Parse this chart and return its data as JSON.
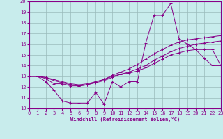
{
  "xlabel": "Windchill (Refroidissement éolien,°C)",
  "xlim": [
    0,
    23
  ],
  "ylim": [
    10,
    20
  ],
  "yticks": [
    10,
    11,
    12,
    13,
    14,
    15,
    16,
    17,
    18,
    19,
    20
  ],
  "xticks": [
    0,
    1,
    2,
    3,
    4,
    5,
    6,
    7,
    8,
    9,
    10,
    11,
    12,
    13,
    14,
    15,
    16,
    17,
    18,
    19,
    20,
    21,
    22,
    23
  ],
  "bg_color": "#c8ecec",
  "line_color": "#880088",
  "grid_color": "#99bbbb",
  "line1_x": [
    0,
    1,
    2,
    3,
    4,
    5,
    6,
    7,
    8,
    9,
    10,
    11,
    12,
    13,
    14,
    15,
    16,
    17,
    18,
    19,
    20,
    21,
    22,
    23
  ],
  "line1_y": [
    13.0,
    13.0,
    12.5,
    11.7,
    10.7,
    10.5,
    10.5,
    10.5,
    11.5,
    10.4,
    12.5,
    12.0,
    12.5,
    12.5,
    16.1,
    18.7,
    18.7,
    19.8,
    16.5,
    16.0,
    15.5,
    14.7,
    14.0,
    14.0
  ],
  "line2_x": [
    0,
    1,
    2,
    3,
    4,
    5,
    6,
    7,
    8,
    9,
    10,
    11,
    12,
    13,
    14,
    15,
    16,
    17,
    18,
    19,
    20,
    21,
    22,
    23
  ],
  "line2_y": [
    13.0,
    13.0,
    12.8,
    12.3,
    12.3,
    12.1,
    12.1,
    12.2,
    12.5,
    12.7,
    13.0,
    13.2,
    13.3,
    13.5,
    13.8,
    14.2,
    14.6,
    15.0,
    15.2,
    15.4,
    15.5,
    15.5,
    15.5,
    14.0
  ],
  "line3_x": [
    0,
    1,
    2,
    3,
    4,
    5,
    6,
    7,
    8,
    9,
    10,
    11,
    12,
    13,
    14,
    15,
    16,
    17,
    18,
    19,
    20,
    21,
    22,
    23
  ],
  "line3_y": [
    13.0,
    13.0,
    12.9,
    12.6,
    12.4,
    12.2,
    12.1,
    12.2,
    12.4,
    12.6,
    12.9,
    13.2,
    13.4,
    13.7,
    14.0,
    14.5,
    14.9,
    15.3,
    15.6,
    15.8,
    16.0,
    16.1,
    16.2,
    16.3
  ],
  "line4_x": [
    0,
    1,
    2,
    3,
    4,
    5,
    6,
    7,
    8,
    9,
    10,
    11,
    12,
    13,
    14,
    15,
    16,
    17,
    18,
    19,
    20,
    21,
    22,
    23
  ],
  "line4_y": [
    13.0,
    13.0,
    12.9,
    12.7,
    12.5,
    12.3,
    12.2,
    12.3,
    12.5,
    12.7,
    13.1,
    13.4,
    13.7,
    14.1,
    14.6,
    15.1,
    15.5,
    15.9,
    16.2,
    16.4,
    16.5,
    16.6,
    16.7,
    16.8
  ]
}
